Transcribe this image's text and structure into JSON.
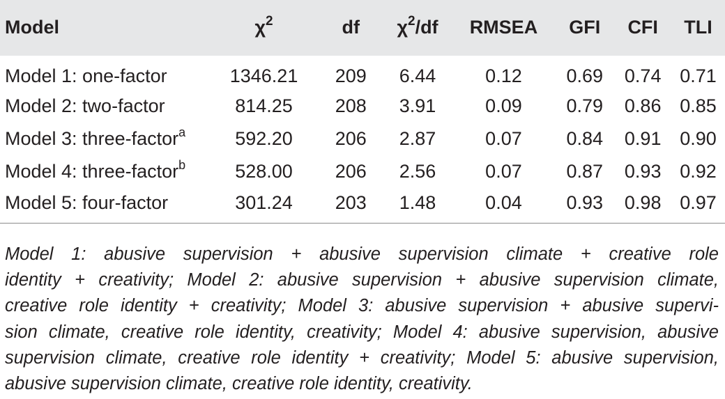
{
  "table": {
    "headers": [
      {
        "main": "Model",
        "sup": ""
      },
      {
        "main": "χ",
        "sup": "2"
      },
      {
        "main": "df",
        "sup": ""
      },
      {
        "main": "χ",
        "sup": "2",
        "suffix": "/df"
      },
      {
        "main": "RMSEA",
        "sup": ""
      },
      {
        "main": "GFI",
        "sup": ""
      },
      {
        "main": "CFI",
        "sup": ""
      },
      {
        "main": "TLI",
        "sup": ""
      }
    ],
    "rows": [
      {
        "model": "Model 1: one-factor",
        "model_sup": "",
        "chi2": "1346.21",
        "df": "209",
        "chi2df": "6.44",
        "rmsea": "0.12",
        "gfi": "0.69",
        "cfi": "0.74",
        "tli": "0.71"
      },
      {
        "model": "Model 2: two-factor",
        "model_sup": "",
        "chi2": "814.25",
        "df": "208",
        "chi2df": "3.91",
        "rmsea": "0.09",
        "gfi": "0.79",
        "cfi": "0.86",
        "tli": "0.85"
      },
      {
        "model": "Model 3: three-factor",
        "model_sup": "a",
        "chi2": "592.20",
        "df": "206",
        "chi2df": "2.87",
        "rmsea": "0.07",
        "gfi": "0.84",
        "cfi": "0.91",
        "tli": "0.90"
      },
      {
        "model": "Model 4: three-factor",
        "model_sup": "b",
        "chi2": "528.00",
        "df": "206",
        "chi2df": "2.56",
        "rmsea": "0.07",
        "gfi": "0.87",
        "cfi": "0.93",
        "tli": "0.92"
      },
      {
        "model": "Model 5: four-factor",
        "model_sup": "",
        "chi2": "301.24",
        "df": "203",
        "chi2df": "1.48",
        "rmsea": "0.04",
        "gfi": "0.93",
        "cfi": "0.98",
        "tli": "0.97"
      }
    ]
  },
  "note": {
    "lines": [
      "Model 1: abusive supervision + abusive supervision climate + creative role",
      "identity + creativity; Model 2: abusive supervision + abusive supervision climate,",
      "creative role identity + creativity; Model 3: abusive supervision + abusive supervi-",
      "sion climate, creative role identity, creativity; Model 4: abusive supervision, abusive",
      "supervision climate, creative role identity + creativity; Model 5: abusive supervision,",
      "abusive supervision climate, creative role identity, creativity."
    ]
  },
  "colors": {
    "header_background": "#e6e7e8",
    "text": "#231f20",
    "rule": "#8a8a8a"
  }
}
